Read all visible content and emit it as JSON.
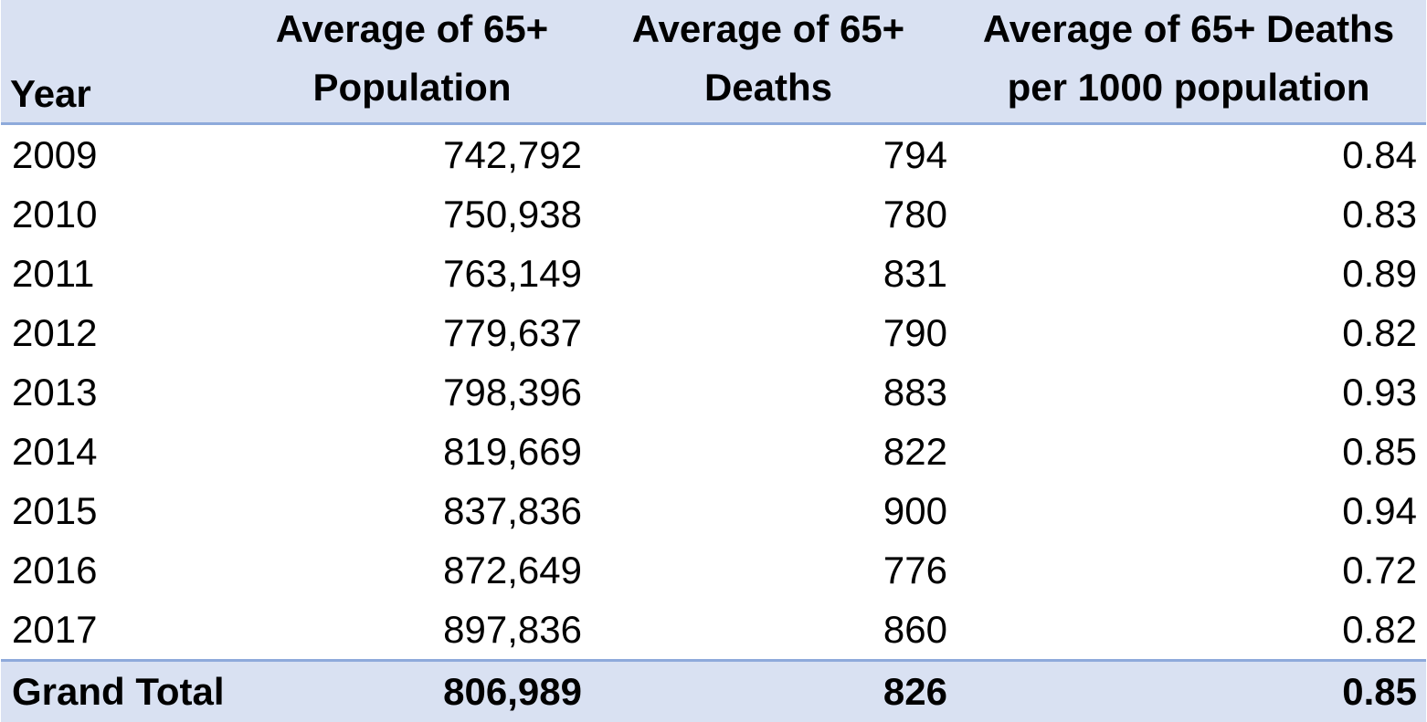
{
  "table": {
    "headers": {
      "year": "Year",
      "population": "Average of 65+ Population",
      "deaths": "Average of 65+ Deaths",
      "rate": "Average of 65+ Deaths per 1000 population"
    },
    "rows": [
      {
        "year": "2009",
        "population": "742,792",
        "deaths": "794",
        "rate": "0.84"
      },
      {
        "year": "2010",
        "population": "750,938",
        "deaths": "780",
        "rate": "0.83"
      },
      {
        "year": "2011",
        "population": "763,149",
        "deaths": "831",
        "rate": "0.89"
      },
      {
        "year": "2012",
        "population": "779,637",
        "deaths": "790",
        "rate": "0.82"
      },
      {
        "year": "2013",
        "population": "798,396",
        "deaths": "883",
        "rate": "0.93"
      },
      {
        "year": "2014",
        "population": "819,669",
        "deaths": "822",
        "rate": "0.85"
      },
      {
        "year": "2015",
        "population": "837,836",
        "deaths": "900",
        "rate": "0.94"
      },
      {
        "year": "2016",
        "population": "872,649",
        "deaths": "776",
        "rate": "0.72"
      },
      {
        "year": "2017",
        "population": "897,836",
        "deaths": "860",
        "rate": "0.82"
      }
    ],
    "grand_total": {
      "label": "Grand Total",
      "population": "806,989",
      "deaths": "826",
      "rate": "0.85"
    }
  },
  "colors": {
    "header_fill": "#d9e1f2",
    "header_border": "#8eaadb",
    "text": "#000000"
  }
}
